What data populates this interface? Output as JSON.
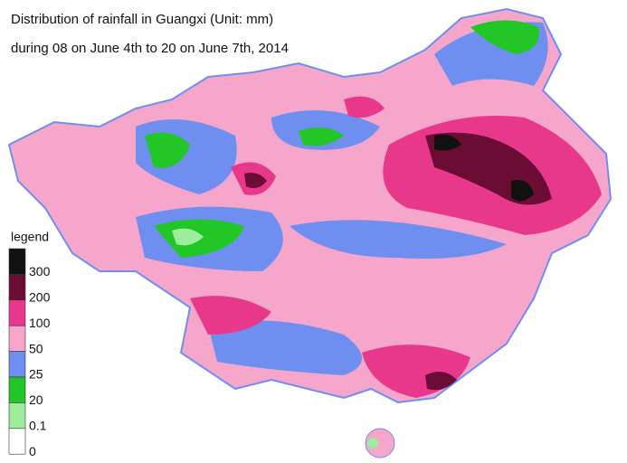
{
  "header": {
    "title": "Distribution of rainfall in Guangxi (Unit: mm)",
    "subtitle": "during 08 on June 4th to 20 on June 7th, 2014"
  },
  "legend": {
    "title": "legend",
    "items": [
      {
        "label": "300",
        "color": "#111111"
      },
      {
        "label": "200",
        "color": "#6a0c33"
      },
      {
        "label": "100",
        "color": "#e8388c"
      },
      {
        "label": "50",
        "color": "#f6a6cb"
      },
      {
        "label": "25",
        "color": "#6e8ff0"
      },
      {
        "label": "20",
        "color": "#22c626"
      },
      {
        "label": "0.1",
        "color": "#9cee9c"
      },
      {
        "label": "0",
        "color": "#ffffff"
      }
    ]
  }
}
